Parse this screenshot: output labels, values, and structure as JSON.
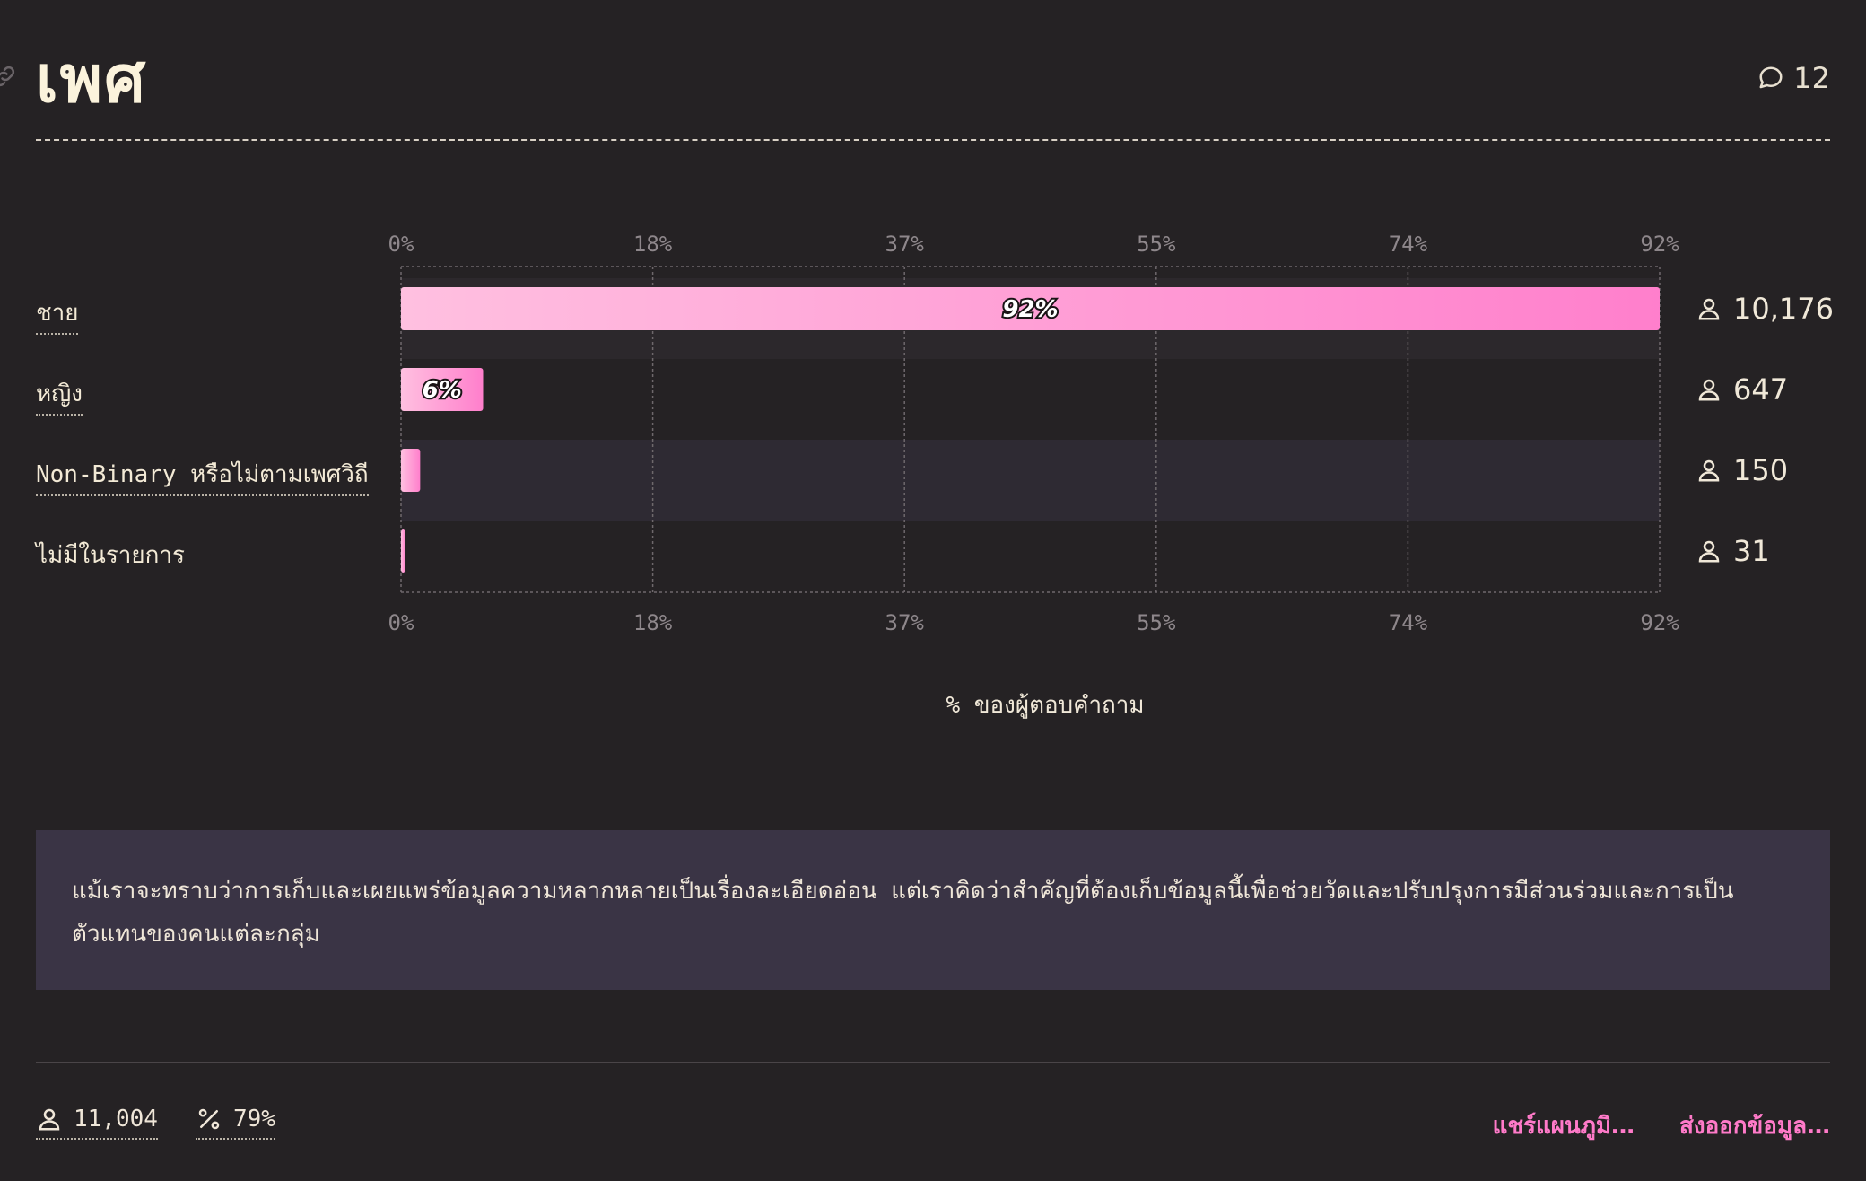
{
  "header": {
    "title": "เพศ",
    "comments_count": "12"
  },
  "chart_data": {
    "type": "bar",
    "orientation": "horizontal",
    "categories": [
      "ชาย",
      "หญิง",
      "Non-Binary หรือไม่ตามเพศวิถี",
      "ไม่มีในรายการ"
    ],
    "values": [
      92,
      6,
      1.4,
      0.3
    ],
    "value_labels": [
      "92%",
      "6%",
      "",
      ""
    ],
    "counts": [
      "10,176",
      "647",
      "150",
      "31"
    ],
    "xlim": [
      0,
      92
    ],
    "ticks": [
      "0%",
      "18%",
      "37%",
      "55%",
      "74%",
      "92%"
    ],
    "tick_values": [
      0,
      18.4,
      36.8,
      55.2,
      73.6,
      92
    ],
    "xlabel": "% ของผู้ตอบคำถาม",
    "grid": true,
    "bar_gradient": [
      "#ffc0e0",
      "#ff7fcc"
    ]
  },
  "note": {
    "text": "แม้เราจะทราบว่าการเก็บและเผยแพร่ข้อมูลความหลากหลายเป็นเรื่องละเอียดอ่อน แต่เราคิดว่าสำคัญที่ต้องเก็บข้อมูลนี้เพื่อช่วยวัดและปรับปรุงการมีส่วนร่วมและการเป็นตัวแทนของคนแต่ละกลุ่ม"
  },
  "footer": {
    "respondents": "11,004",
    "response_rate": "79%",
    "share_label": "แชร์แผนภูมิ…",
    "export_label": "ส่งออกข้อมูล…"
  }
}
